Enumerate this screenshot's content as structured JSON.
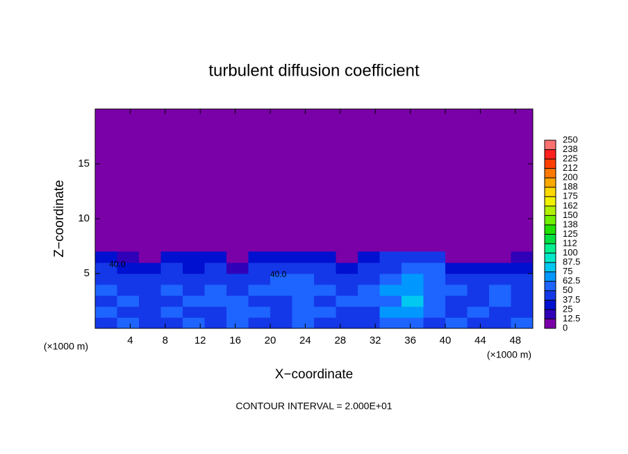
{
  "chart_data": {
    "type": "contour",
    "title": "turbulent diffusion coefficient",
    "xlabel": "X−coordinate",
    "ylabel": "Z−coordinate",
    "x_unit": "(×1000 m)",
    "footnote": "CONTOUR INTERVAL = 2.000E+01",
    "xlim": [
      0,
      50
    ],
    "ylim": [
      0,
      20
    ],
    "xticks": [
      4,
      8,
      12,
      16,
      20,
      24,
      28,
      32,
      36,
      40,
      44,
      48
    ],
    "yticks": [
      5,
      10,
      15
    ],
    "background": "#7a00a8",
    "x": [
      1.25,
      3.75,
      6.25,
      8.75,
      11.25,
      13.75,
      16.25,
      18.75,
      21.25,
      23.75,
      26.25,
      28.75,
      31.25,
      33.75,
      36.25,
      38.75,
      41.25,
      43.75,
      46.25,
      48.75
    ],
    "y": [
      0.5,
      1.5,
      2.5,
      3.5,
      4.5,
      5.5,
      6.5
    ],
    "values": [
      [
        45,
        50,
        40,
        45,
        50,
        40,
        55,
        45,
        40,
        50,
        45,
        40,
        45,
        60,
        50,
        45,
        50,
        45,
        40,
        50
      ],
      [
        50,
        45,
        40,
        50,
        45,
        45,
        55,
        50,
        40,
        50,
        50,
        45,
        45,
        70,
        65,
        50,
        45,
        50,
        45,
        45
      ],
      [
        45,
        50,
        45,
        45,
        50,
        50,
        50,
        45,
        45,
        55,
        45,
        50,
        50,
        60,
        75,
        55,
        45,
        45,
        50,
        45
      ],
      [
        50,
        45,
        40,
        50,
        40,
        50,
        45,
        50,
        50,
        55,
        50,
        45,
        55,
        65,
        70,
        60,
        50,
        45,
        50,
        45
      ],
      [
        45,
        40,
        45,
        45,
        40,
        45,
        40,
        45,
        50,
        50,
        45,
        40,
        45,
        55,
        65,
        60,
        45,
        40,
        45,
        45
      ],
      [
        40,
        35,
        30,
        40,
        35,
        40,
        15,
        40,
        45,
        45,
        40,
        35,
        40,
        45,
        60,
        55,
        30,
        25,
        35,
        35
      ],
      [
        35,
        20,
        5,
        30,
        30,
        35,
        5,
        25,
        35,
        35,
        30,
        5,
        35,
        40,
        45,
        40,
        5,
        0,
        10,
        20
      ]
    ],
    "levels": [
      0,
      12.5,
      25,
      37.5,
      50,
      62.5,
      75,
      87.5,
      100,
      {
        "value": 112.5,
        "label": "112"
      },
      125,
      {
        "value": 137.5,
        "label": "138"
      },
      150,
      {
        "value": 162.5,
        "label": "162"
      },
      175,
      {
        "value": 187.5,
        "label": "188"
      },
      200,
      {
        "value": 212.5,
        "label": "212"
      },
      225,
      {
        "value": 237.5,
        "label": "238"
      },
      250
    ],
    "colors": [
      "#7a00a8",
      "#3000b8",
      "#0010d0",
      "#1438e8",
      "#1e64ff",
      "#0098ff",
      "#00c8f0",
      "#00e8c8",
      "#00f090",
      "#00e040",
      "#20e000",
      "#70f000",
      "#b0f000",
      "#f0f000",
      "#ffd800",
      "#ffa800",
      "#ff7800",
      "#ff4000",
      "#ff2020",
      "#ff7070"
    ],
    "annotations": [
      {
        "text": "40.0",
        "x": 1.6,
        "y": 5.8
      },
      {
        "text": "40.0",
        "x": 20.0,
        "y": 4.9
      }
    ]
  }
}
